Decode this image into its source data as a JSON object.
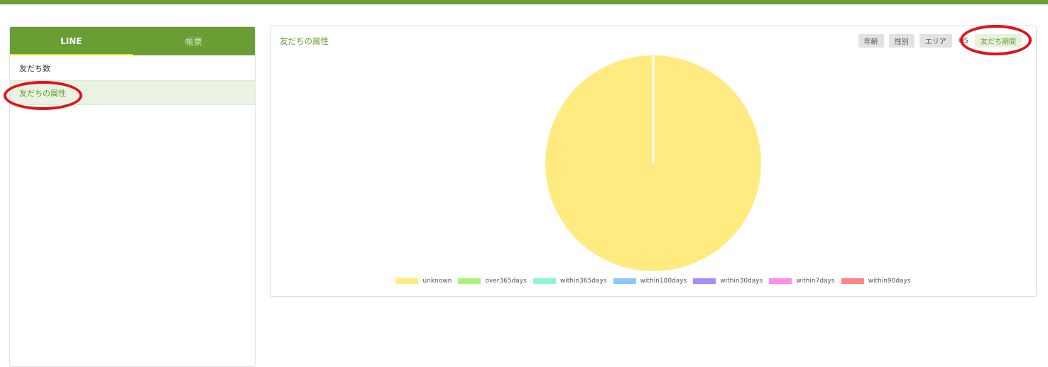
{
  "sidebar": {
    "tabs": [
      {
        "label": "LINE",
        "active": true
      },
      {
        "label": "帳票",
        "active": false
      }
    ],
    "items": [
      {
        "label": "友だち数",
        "active": false
      },
      {
        "label": "友だちの属性",
        "active": true
      }
    ]
  },
  "panel": {
    "title": "友だちの属性",
    "filters": [
      {
        "label": "年齢",
        "active": false
      },
      {
        "label": "性別",
        "active": false
      },
      {
        "label": "エリア",
        "active": false
      },
      {
        "label": "OS",
        "active": false
      },
      {
        "label": "友だち期間",
        "active": true
      }
    ]
  },
  "colors": {
    "brand": "#6a9e35",
    "tab_underline": "#f4e11a",
    "annotation": "#e0121a"
  },
  "chart_data": {
    "type": "pie",
    "title": "",
    "series": [
      {
        "name": "unknown",
        "value": 100,
        "color": "#ffeb80"
      },
      {
        "name": "over365days",
        "value": 0,
        "color": "#a8f57a"
      },
      {
        "name": "within365days",
        "value": 0,
        "color": "#8ff7cb"
      },
      {
        "name": "within180days",
        "value": 0,
        "color": "#8ec8f8"
      },
      {
        "name": "within30days",
        "value": 0,
        "color": "#a98cf8"
      },
      {
        "name": "within7days",
        "value": 0,
        "color": "#fb8ee9"
      },
      {
        "name": "within90days",
        "value": 0,
        "color": "#fd8685"
      }
    ],
    "legend_position": "bottom"
  }
}
